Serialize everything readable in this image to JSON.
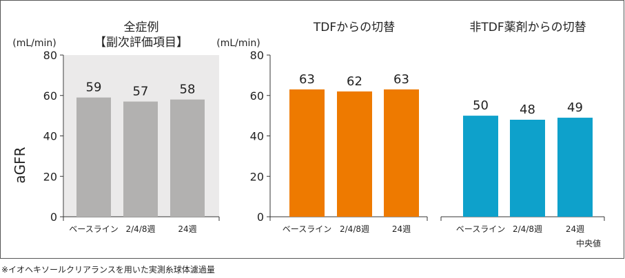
{
  "chart_data": [
    {
      "type": "bar",
      "title": "全症例",
      "subtitle": "【副次評価項目】",
      "unit": "(mL/min)",
      "ylabel": "aGFR",
      "ylim": [
        0,
        80
      ],
      "yticks": [
        "0",
        "20",
        "40",
        "60",
        "80"
      ],
      "categories": [
        "ベースライン",
        "2/4/8週",
        "24週"
      ],
      "values": [
        59,
        57,
        58
      ],
      "color": "#b2b1b0",
      "background": "#ebeaea"
    },
    {
      "type": "bar",
      "title": "TDFからの切替",
      "unit": "(mL/min)",
      "ylim": [
        0,
        80
      ],
      "yticks": [
        "0",
        "20",
        "40",
        "60",
        "80"
      ],
      "categories": [
        "ベースライン",
        "2/4/8週",
        "24週"
      ],
      "values": [
        63,
        62,
        63
      ],
      "color": "#ee7a00"
    },
    {
      "type": "bar",
      "title": "非TDF薬剤からの切替",
      "ylim": [
        0,
        80
      ],
      "categories": [
        "ベースライン",
        "2/4/8週",
        "24週"
      ],
      "values": [
        50,
        48,
        49
      ],
      "color": "#0ea1cb"
    }
  ],
  "note_median": "中央値",
  "footnote": "※イオヘキソールクリアランスを用いた実測糸球体濾過量"
}
